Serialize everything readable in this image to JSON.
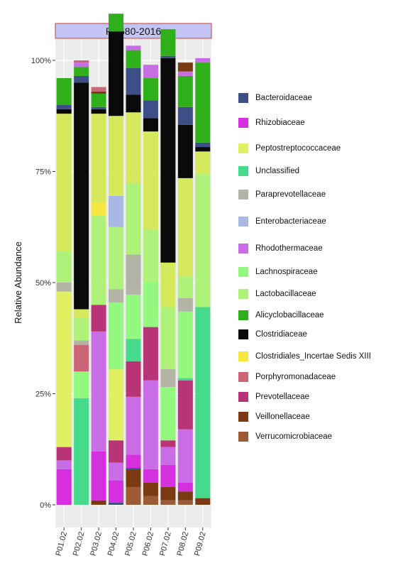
{
  "chart_data": {
    "type": "bar",
    "stacked": true,
    "facet_title": "RV580-2016",
    "ylabel": "Relative Abundance",
    "xlabel": "",
    "ylim": [
      0,
      100
    ],
    "y_ticks": [
      "0%",
      "25%",
      "50%",
      "75%",
      "100%"
    ],
    "categories": [
      "P01.02",
      "P02.02",
      "P03.02",
      "P04.02",
      "P05.02",
      "P06.02",
      "P07.02",
      "P08.02",
      "P09.02"
    ],
    "series": [
      {
        "name": "Verrucomicrobiaceae",
        "color": "#9C5B34",
        "values": [
          0,
          0,
          0,
          0,
          4,
          2,
          1,
          1,
          0
        ]
      },
      {
        "name": "Veillonellaceae",
        "color": "#7A3A12",
        "values": [
          0,
          0,
          1,
          0,
          4,
          3,
          3,
          2,
          1.5
        ]
      },
      {
        "name": "Bacteroidaceae",
        "color": "#3E4E86",
        "values": [
          0,
          0,
          0,
          0.5,
          0.3,
          0,
          0,
          0,
          0
        ]
      },
      {
        "name": "Rhizobiaceae",
        "color": "#D62FE0",
        "values": [
          8,
          0,
          11,
          5,
          3,
          3,
          5,
          2,
          0
        ]
      },
      {
        "name": "Rhodothermaceae",
        "color": "#C86DE6",
        "values": [
          2,
          0,
          27,
          4,
          13,
          20,
          4,
          12,
          0
        ]
      },
      {
        "name": "Prevotellaceae",
        "color": "#B83476",
        "values": [
          3,
          0,
          6,
          5,
          8,
          12,
          1.5,
          11,
          0
        ]
      },
      {
        "name": "Unclassified",
        "color": "#45DA8C",
        "values": [
          0,
          24,
          0,
          0,
          5,
          0,
          0,
          0.5,
          43
        ]
      },
      {
        "name": "Peptostreptococcaceae",
        "color": "#E1EF63",
        "values": [
          35,
          0,
          0,
          16,
          0,
          0,
          0,
          0,
          0
        ]
      },
      {
        "name": "Lachnospiraceae",
        "color": "#92F87E",
        "values": [
          0,
          6,
          0,
          15,
          10,
          10,
          12,
          15,
          0
        ]
      },
      {
        "name": "Porphyromonadaceae",
        "color": "#CC6577",
        "values": [
          0,
          6,
          0,
          0,
          0,
          0,
          0,
          0,
          0
        ]
      },
      {
        "name": "Paraprevotellaceae",
        "color": "#B3B3A6",
        "values": [
          2,
          1,
          0,
          3,
          9,
          0,
          4,
          3,
          0
        ]
      },
      {
        "name": "Lactobacillaceae",
        "color": "#AEF27A",
        "values": [
          7,
          5,
          20,
          14,
          16,
          12,
          14,
          5,
          30
        ]
      },
      {
        "name": "Clostridiales_Incertae Sedis XIII",
        "color": "#F6E640",
        "values": [
          0,
          0,
          3,
          0,
          0,
          0,
          0,
          0,
          0
        ]
      },
      {
        "name": "Enterobacteriaceae",
        "color": "#A7B8E4",
        "values": [
          0,
          0,
          0,
          7,
          0,
          0,
          0,
          0,
          0
        ]
      },
      {
        "name": "Peptostreptococcaceae",
        "color": "#D6E85B",
        "values": [
          31,
          2,
          20,
          18,
          16,
          22,
          10,
          22,
          5
        ]
      },
      {
        "name": "Clostridiaceae",
        "color": "#0A0A0A",
        "values": [
          1,
          51,
          1,
          19,
          4,
          3,
          46,
          12,
          1
        ]
      },
      {
        "name": "Bacteroidaceae",
        "color": "#3E4E86",
        "values": [
          1,
          1.5,
          0.5,
          0,
          6,
          4,
          0.5,
          4,
          1
        ]
      },
      {
        "name": "Alicyclobacillaceae",
        "color": "#2FAF1A",
        "values": [
          6,
          2,
          3,
          4,
          4,
          5,
          6,
          7,
          18
        ]
      },
      {
        "name": "Rhodothermaceae",
        "color": "#C86DE6",
        "values": [
          0,
          1,
          0,
          0,
          1,
          3,
          0,
          1,
          1
        ]
      },
      {
        "name": "Veillonellaceae",
        "color": "#7A3A12",
        "values": [
          0,
          0,
          0.5,
          0,
          0,
          0,
          0,
          2,
          0
        ]
      },
      {
        "name": "Porphyromonadaceae",
        "color": "#CC6577",
        "values": [
          0,
          0.5,
          1,
          0,
          0,
          0,
          0,
          0,
          0
        ]
      }
    ],
    "legend": [
      {
        "label": "Bacteroidaceae",
        "color": "#3E4E86"
      },
      {
        "label": "Rhizobiaceae",
        "color": "#D62FE0"
      },
      {
        "label": "Peptostreptococcaceae",
        "color": "#E1EF63"
      },
      {
        "label": "Unclassified",
        "color": "#45DA8C"
      },
      {
        "label": "Paraprevotellaceae",
        "color": "#B3B3A6"
      },
      {
        "label": " Enterobacteriaceae",
        "color": "#A7B8E4"
      },
      {
        "label": "Rhodothermaceae",
        "color": "#C86DE6"
      },
      {
        "label": "Lachnospiraceae",
        "color": "#92F87E"
      },
      {
        "label": "Lactobacillaceae",
        "color": "#AEF27A"
      },
      {
        "label": "Alicyclobacillaceae",
        "color": "#2FAF1A"
      },
      {
        "label": "Clostridiaceae",
        "color": "#0A0A0A"
      },
      {
        "label": "Clostridiales_Incertae Sedis XIII",
        "color": "#F6E640"
      },
      {
        "label": "Porphyromonadaceae",
        "color": "#CC6577"
      },
      {
        "label": "Prevotellaceae",
        "color": "#B83476"
      },
      {
        "label": "Veillonellaceae",
        "color": "#7A3A12"
      },
      {
        "label": "Verrucomicrobiaceae",
        "color": "#9C5B34"
      }
    ],
    "grid": true,
    "legend_position": "right"
  }
}
